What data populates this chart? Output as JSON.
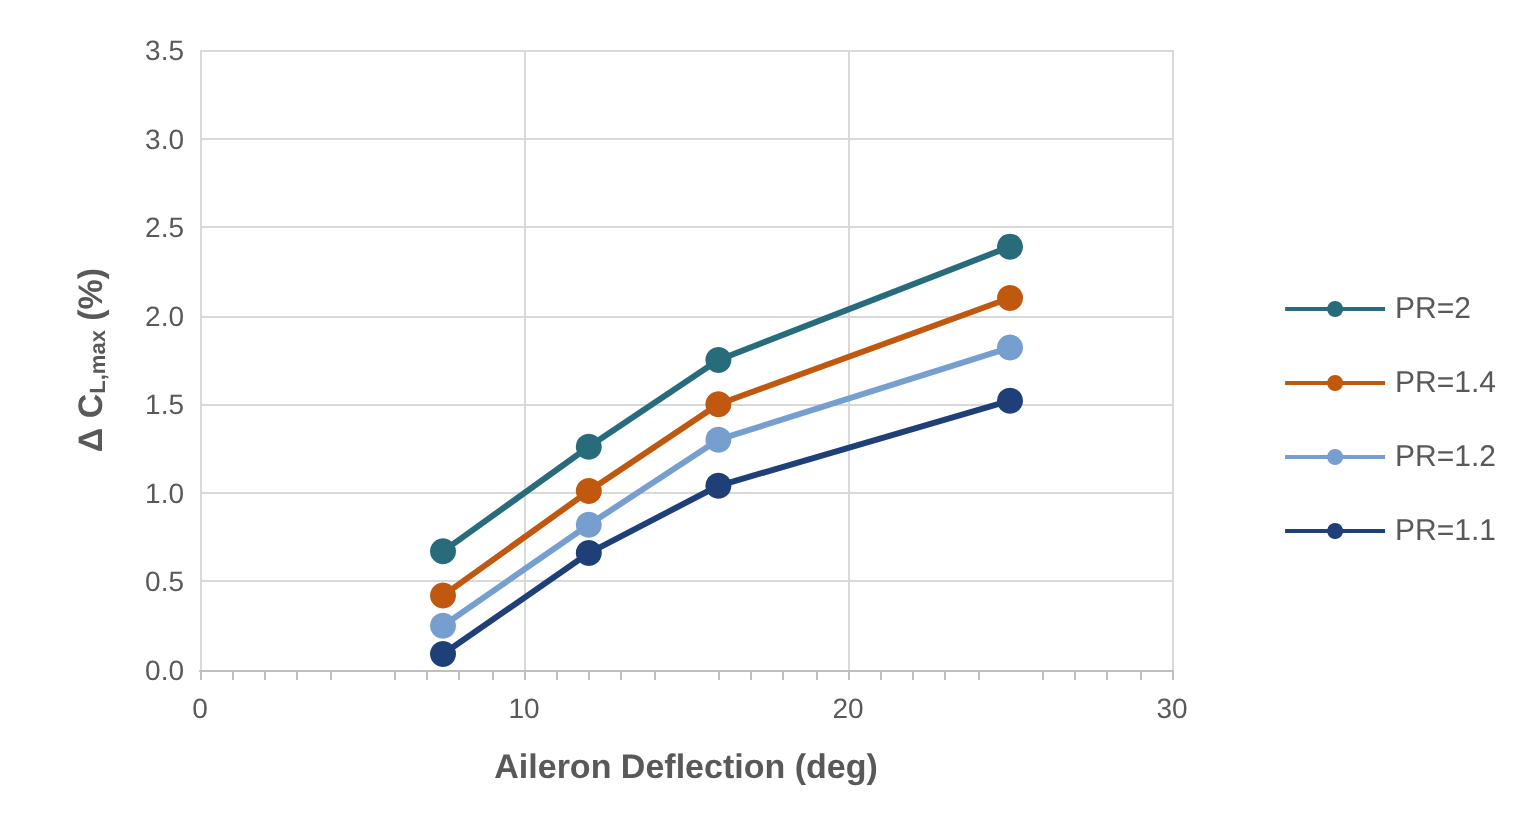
{
  "chart_data": {
    "type": "line",
    "xlabel": "Aileron Deflection (deg)",
    "ylabel": "Δ C$_{L,max}$ (%)",
    "x": [
      7.5,
      12,
      16,
      25
    ],
    "series": [
      {
        "name": "PR=2",
        "color": "#286b7b",
        "values": [
          0.67,
          1.26,
          1.75,
          2.39
        ]
      },
      {
        "name": "PR=1.4",
        "color": "#c0580f",
        "values": [
          0.42,
          1.01,
          1.5,
          2.1
        ]
      },
      {
        "name": "PR=1.2",
        "color": "#769fd0",
        "values": [
          0.25,
          0.82,
          1.3,
          1.82
        ]
      },
      {
        "name": "PR=1.1",
        "color": "#1f3f78",
        "values": [
          0.09,
          0.66,
          1.04,
          1.52
        ]
      }
    ],
    "xlim": [
      0,
      30
    ],
    "xticks": [
      0,
      10,
      20,
      30
    ],
    "ylim": [
      0,
      3.5
    ],
    "yticks": [
      {
        "value": 0,
        "label": "0.0"
      },
      0.5,
      {
        "value": 1,
        "label": "1.0"
      },
      1.5,
      {
        "value": 2,
        "label": "2.0"
      },
      2.5,
      {
        "value": 3,
        "label": "3.0"
      },
      3.5
    ],
    "grid": true,
    "legend": "right",
    "marker": "circle",
    "line_style": "solid"
  }
}
